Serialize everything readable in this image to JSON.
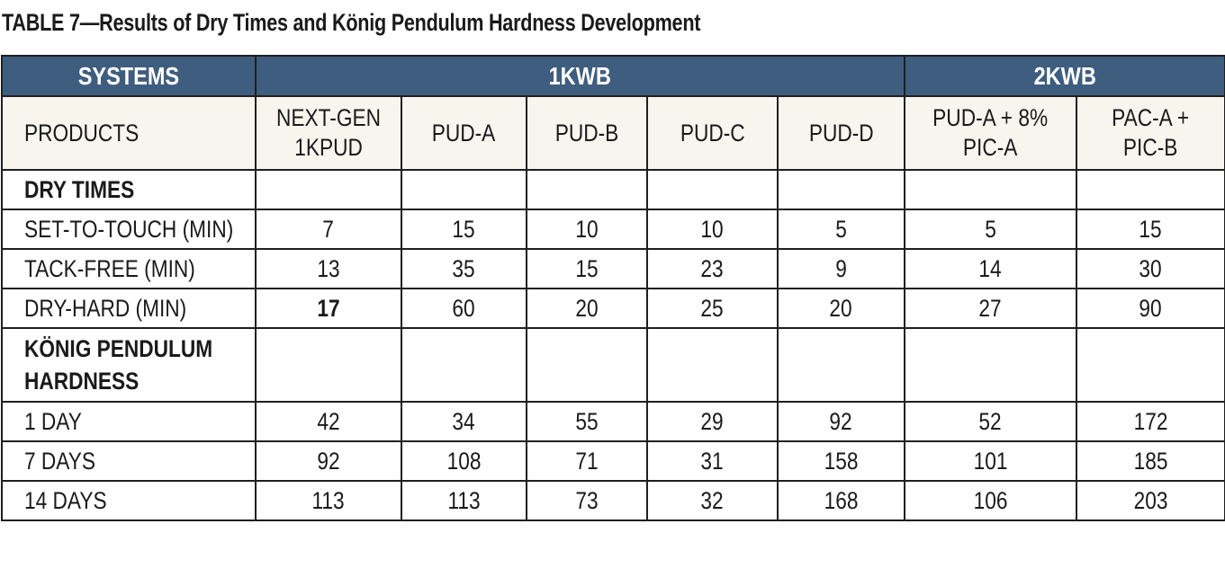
{
  "title": "TABLE 7—Results of Dry Times and König Pendulum Hardness Development",
  "header": {
    "systems": "SYSTEMS",
    "group_1kwb": "1KWB",
    "group_2kwb": "2KWB"
  },
  "products": {
    "label": "PRODUCTS",
    "items": [
      [
        "NEXT-GEN",
        "1KPUD"
      ],
      [
        "PUD-A"
      ],
      [
        "PUD-B"
      ],
      [
        "PUD-C"
      ],
      [
        "PUD-D"
      ],
      [
        "PUD-A + 8%",
        "PIC-A"
      ],
      [
        "PAC-A +",
        "PIC-B"
      ]
    ]
  },
  "sections": [
    {
      "title": [
        "DRY TIMES"
      ],
      "rows": [
        {
          "label": "SET-TO-TOUCH (MIN)",
          "values": [
            "7",
            "15",
            "10",
            "10",
            "5",
            "5",
            "15"
          ]
        },
        {
          "label": "TACK-FREE (MIN)",
          "values": [
            "13",
            "35",
            "15",
            "23",
            "9",
            "14",
            "30"
          ]
        },
        {
          "label": "DRY-HARD (MIN)",
          "values": [
            "17",
            "60",
            "20",
            "25",
            "20",
            "27",
            "90"
          ]
        }
      ]
    },
    {
      "title": [
        "KÖNIG PENDULUM",
        "HARDNESS"
      ],
      "rows": [
        {
          "label": "1 DAY",
          "values": [
            "42",
            "34",
            "55",
            "29",
            "92",
            "52",
            "172"
          ]
        },
        {
          "label": "7 DAYS",
          "values": [
            "92",
            "108",
            "71",
            "31",
            "158",
            "101",
            "185"
          ]
        },
        {
          "label": "14 DAYS",
          "values": [
            "113",
            "113",
            "73",
            "32",
            "168",
            "106",
            "203"
          ]
        }
      ]
    }
  ]
}
